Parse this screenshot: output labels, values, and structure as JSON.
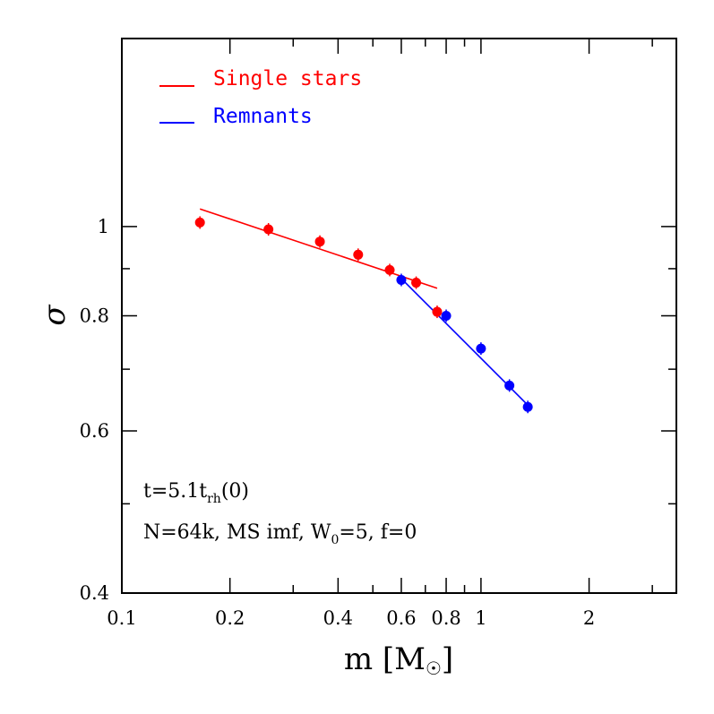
{
  "chart_data": {
    "type": "scatter",
    "xscale": "log",
    "yscale": "log",
    "xlim": [
      0.1,
      3.5
    ],
    "ylim": [
      0.4,
      1.6
    ],
    "xlabel": "m [M",
    "xlabel_symbol": "☉",
    "xlabel_close": "]",
    "ylabel": "σ",
    "xticks": [
      {
        "value": 0.1,
        "label": "0.1"
      },
      {
        "value": 0.2,
        "label": "0.2"
      },
      {
        "value": 0.4,
        "label": "0.4"
      },
      {
        "value": 0.6,
        "label": "0.6"
      },
      {
        "value": 0.8,
        "label": "0.8"
      },
      {
        "value": 1,
        "label": "1"
      },
      {
        "value": 2,
        "label": "2"
      }
    ],
    "xminor": [
      0.3,
      0.5,
      0.7,
      0.9,
      3
    ],
    "yticks": [
      {
        "value": 0.4,
        "label": "0.4"
      },
      {
        "value": 0.6,
        "label": "0.6"
      },
      {
        "value": 0.8,
        "label": "0.8"
      },
      {
        "value": 1,
        "label": "1"
      }
    ],
    "yminor": [
      0.5,
      0.7,
      0.9
    ],
    "series": [
      {
        "name": "Single stars",
        "color": "#ff0000",
        "points": [
          {
            "x": 0.165,
            "y": 1.01
          },
          {
            "x": 0.256,
            "y": 0.993
          },
          {
            "x": 0.356,
            "y": 0.963
          },
          {
            "x": 0.455,
            "y": 0.932
          },
          {
            "x": 0.557,
            "y": 0.897
          },
          {
            "x": 0.66,
            "y": 0.869
          },
          {
            "x": 0.755,
            "y": 0.808
          }
        ],
        "fit": [
          {
            "x": 0.165,
            "y": 1.045
          },
          {
            "x": 0.755,
            "y": 0.857
          }
        ]
      },
      {
        "name": "Remnants",
        "color": "#0000ff",
        "points": [
          {
            "x": 0.6,
            "y": 0.875
          },
          {
            "x": 0.8,
            "y": 0.8
          },
          {
            "x": 1.0,
            "y": 0.737
          },
          {
            "x": 1.2,
            "y": 0.672
          },
          {
            "x": 1.35,
            "y": 0.637
          }
        ],
        "fit": [
          {
            "x": 0.6,
            "y": 0.878
          },
          {
            "x": 1.35,
            "y": 0.64
          }
        ]
      }
    ],
    "legend": {
      "placement": "top-left",
      "entries": [
        "Single stars",
        "Remnants"
      ]
    },
    "annotations": {
      "line1_prefix": "t=5.1t",
      "line1_sub": "rh",
      "line1_suffix": "(0)",
      "line2_prefix": "N=64k, MS imf, W",
      "line2_sub": "0",
      "line2_suffix": "=5, f=0"
    }
  }
}
